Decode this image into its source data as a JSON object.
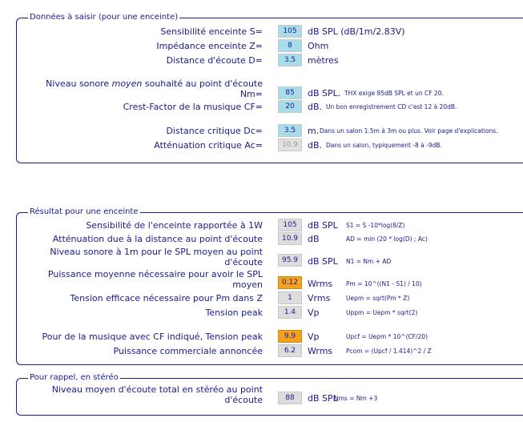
{
  "section1": {
    "legend": "Données à saisir (pour une enceinte)",
    "rows": [
      {
        "label": "Sensibilité enceinte S=",
        "value": "105",
        "unit": "dB SPL (dB/1m/2.83V)",
        "note": ""
      },
      {
        "label": "Impédance enceinte Z=",
        "value": "8",
        "unit": "Ohm",
        "note": ""
      },
      {
        "label": "Distance d'écoute D=",
        "value": "3.5",
        "unit": "mètres",
        "note": ""
      },
      {
        "label_pre": "Niveau sonore ",
        "label_em": "moyen",
        "label_post": " souhaité au point d'écoute",
        "label_line2": "Nm=",
        "value": "85",
        "unit": "dB SPL.",
        "note": "THX exige 85dB SPL et un CF 20."
      },
      {
        "label": "Crest-Factor de la musique CF=",
        "value": "20",
        "unit": "dB.",
        "note": "Un bon enregistrement CD c'est 12 à 20dB."
      },
      {
        "label": "Distance critique Dc=",
        "value": "3.5",
        "unit": "m.",
        "note": "Dans un salon 1.5m à 3m ou plus. Voir page d'explications."
      },
      {
        "label": "Atténuation critique Ac=",
        "value": "10.9",
        "unit": "dB.",
        "note": "Dans un salon, typiquement -8 à -9dB."
      }
    ]
  },
  "section2": {
    "legend": "Résultat pour une enceinte",
    "rows": [
      {
        "label": "Sensibilité de l'enceinte rapportée à 1W",
        "value": "105",
        "unit": "dB SPL",
        "formula": "S1 = S -10*log(8/Z)"
      },
      {
        "label": "Atténuation due à la distance au point d'écoute",
        "value": "10.9",
        "unit": "dB",
        "formula": "AD = min (20 * log(D) ; Ac)"
      },
      {
        "label": "Niveau sonore à 1m pour le SPL moyen au point",
        "label_line2": "d'écoute",
        "value": "95.9",
        "unit": "dB SPL",
        "formula": "N1 = Nm + AD"
      },
      {
        "label": "Puissance moyenne nécessaire pour avoir le SPL",
        "label_line2": "moyen",
        "value": "0.12",
        "unit": "Wrms",
        "formula": "Pm = 10^((N1 - S1) / 10)"
      },
      {
        "label": "Tension efficace nécessaire pour Pm dans Z",
        "value": "1",
        "unit": "Vrms",
        "formula": "Uepm = sqrt(Pm * Z)"
      },
      {
        "label": "Tension peak",
        "value": "1.4",
        "unit": "Vp",
        "formula": "Uppm = Uepm * sqrt(2)"
      },
      {
        "label": "Pour de la musique avec CF indiqué, Tension peak",
        "value": "9.9",
        "unit": "Vp",
        "formula": "Upcf = Uepm * 10^(CF/20)"
      },
      {
        "label": "Puissance commerciale annoncée",
        "value": "6.2",
        "unit": "Wrms",
        "formula": "Pcom = (Upcf / 1.414)^2 / Z"
      }
    ]
  },
  "section3": {
    "legend": "Pour rappel, en stéréo",
    "rows": [
      {
        "label": "Niveau moyen d'écoute total en stéréo au point",
        "label_line2": "d'écoute",
        "value": "88",
        "unit": "dB SPL",
        "formula": "Nms = Nm +3"
      }
    ]
  }
}
